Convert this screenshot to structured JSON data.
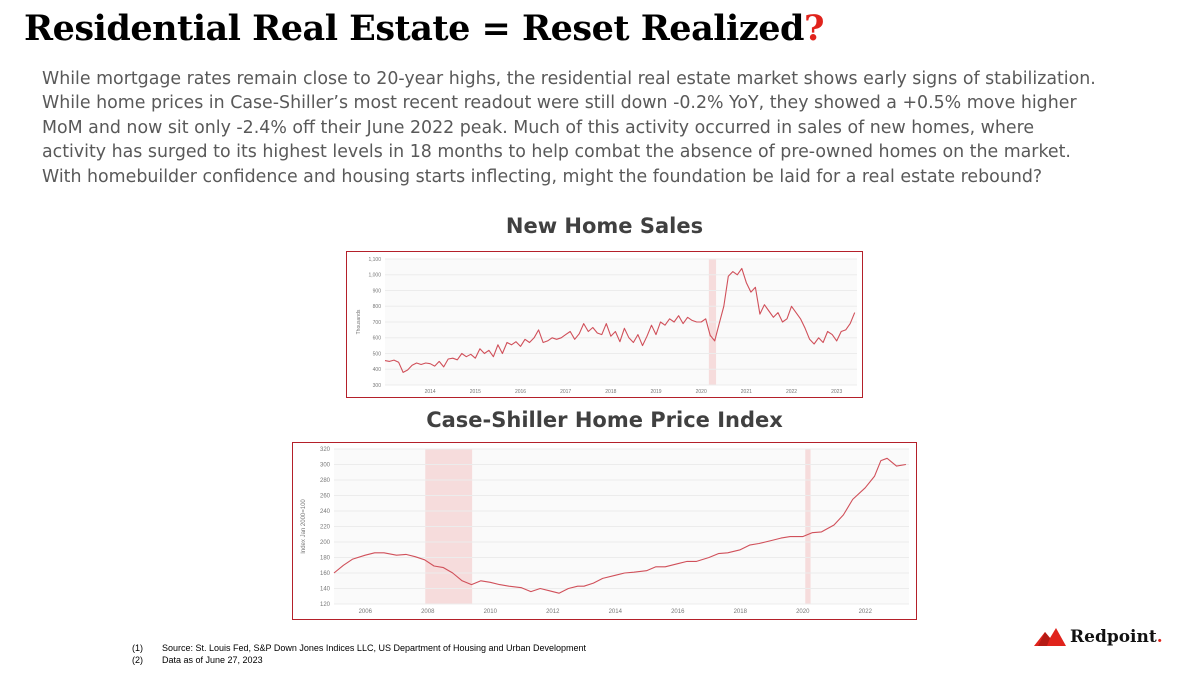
{
  "slide": {
    "title_main": "Residential Real Estate = Reset Realized",
    "title_mark": "?",
    "body_lines": [
      "While mortgage rates remain close to 20-year highs, the residential real estate market shows early signs of stabilization.",
      "While home prices in Case-Shiller’s most recent readout were still down -0.2% YoY, they showed a +0.5% move higher",
      "MoM and now sit only -2.4% off their June 2022 peak. Much of this activity occurred in sales of new homes, where",
      "activity has surged to its highest levels in 18 months to help combat the absence of pre-owned homes on the market.",
      "With homebuilder confidence and housing starts inflecting, might the foundation be laid for a real estate rebound?"
    ],
    "footnotes": [
      {
        "num": "(1)",
        "text": "Source: St. Louis Fed, S&P Down Jones Indices LLC, US Department of Housing and Urban Development"
      },
      {
        "num": "(2)",
        "text": "Data as of June 27, 2023"
      }
    ],
    "logo": {
      "name": "Redpoint",
      "dot": ".",
      "icon": "mountain-logo-icon",
      "color": "#e0231c"
    },
    "accent_color": "#e0231c",
    "line_color": "#d0505a",
    "recession_color": "#f6dcdc",
    "border_color": "#b4202a"
  },
  "chart_data": [
    {
      "type": "line",
      "title": "New Home Sales",
      "ylabel": "Thousands",
      "xlabel": "",
      "ylim": [
        300,
        1100
      ],
      "yticks": [
        "1,100",
        "1,000",
        "900",
        "800",
        "700",
        "600",
        "500",
        "400",
        "300"
      ],
      "ytick_values": [
        1100,
        1000,
        900,
        800,
        700,
        600,
        500,
        400,
        300
      ],
      "xticks": [
        "2014",
        "2015",
        "2016",
        "2017",
        "2018",
        "2019",
        "2020",
        "2021",
        "2022",
        "2023"
      ],
      "xtick_values": [
        2014,
        2015,
        2016,
        2017,
        2018,
        2019,
        2020,
        2021,
        2022,
        2023
      ],
      "xlim": [
        2013.0,
        2023.45
      ],
      "grid": true,
      "recession_shading": [
        [
          2020.17,
          2020.33
        ]
      ],
      "series": [
        {
          "x": [
            2013.0,
            2013.1,
            2013.2,
            2013.3,
            2013.4,
            2013.5,
            2013.6,
            2013.7,
            2013.8,
            2013.9,
            2014.0,
            2014.1,
            2014.2,
            2014.3,
            2014.4,
            2014.5,
            2014.6,
            2014.7,
            2014.8,
            2014.9,
            2015.0,
            2015.1,
            2015.2,
            2015.3,
            2015.4,
            2015.5,
            2015.6,
            2015.7,
            2015.8,
            2015.9,
            2016.0,
            2016.1,
            2016.2,
            2016.3,
            2016.4,
            2016.5,
            2016.6,
            2016.7,
            2016.8,
            2016.9,
            2017.0,
            2017.1,
            2017.2,
            2017.3,
            2017.4,
            2017.5,
            2017.6,
            2017.7,
            2017.8,
            2017.9,
            2018.0,
            2018.1,
            2018.2,
            2018.3,
            2018.4,
            2018.5,
            2018.6,
            2018.7,
            2018.8,
            2018.9,
            2019.0,
            2019.1,
            2019.2,
            2019.3,
            2019.4,
            2019.5,
            2019.6,
            2019.7,
            2019.8,
            2019.9,
            2020.0,
            2020.1,
            2020.2,
            2020.3,
            2020.4,
            2020.5,
            2020.6,
            2020.7,
            2020.8,
            2020.9,
            2021.0,
            2021.1,
            2021.2,
            2021.3,
            2021.4,
            2021.5,
            2021.6,
            2021.7,
            2021.8,
            2021.9,
            2022.0,
            2022.1,
            2022.2,
            2022.3,
            2022.4,
            2022.5,
            2022.6,
            2022.7,
            2022.8,
            2022.9,
            2023.0,
            2023.1,
            2023.2,
            2023.3,
            2023.4
          ],
          "y": [
            455,
            450,
            458,
            445,
            380,
            395,
            425,
            440,
            430,
            440,
            435,
            420,
            450,
            415,
            465,
            470,
            460,
            500,
            480,
            495,
            470,
            530,
            500,
            520,
            480,
            555,
            500,
            570,
            555,
            575,
            545,
            590,
            570,
            600,
            650,
            570,
            580,
            600,
            590,
            600,
            620,
            640,
            590,
            625,
            690,
            640,
            665,
            630,
            620,
            690,
            610,
            640,
            575,
            660,
            600,
            570,
            620,
            550,
            610,
            680,
            620,
            700,
            680,
            720,
            700,
            740,
            690,
            730,
            710,
            700,
            700,
            720,
            615,
            580,
            690,
            800,
            990,
            1020,
            1000,
            1040,
            950,
            890,
            920,
            750,
            810,
            770,
            730,
            760,
            700,
            720,
            800,
            760,
            720,
            660,
            590,
            560,
            600,
            570,
            640,
            620,
            580,
            640,
            650,
            690,
            760
          ]
        }
      ]
    },
    {
      "type": "line",
      "title": "Case-Shiller Home Price Index",
      "ylabel": "Index Jan 2000=100",
      "xlabel": "",
      "ylim": [
        120,
        320
      ],
      "yticks": [
        "320",
        "300",
        "280",
        "260",
        "240",
        "220",
        "200",
        "180",
        "160",
        "140",
        "120"
      ],
      "ytick_values": [
        320,
        300,
        280,
        260,
        240,
        220,
        200,
        180,
        160,
        140,
        120
      ],
      "xticks": [
        "2006",
        "2008",
        "2010",
        "2012",
        "2014",
        "2016",
        "2018",
        "2020",
        "2022"
      ],
      "xtick_values": [
        2006,
        2008,
        2010,
        2012,
        2014,
        2016,
        2018,
        2020,
        2022
      ],
      "xlim": [
        2005.0,
        2023.4
      ],
      "grid": true,
      "recession_shading": [
        [
          2007.92,
          2009.42
        ],
        [
          2020.08,
          2020.25
        ]
      ],
      "series": [
        {
          "x": [
            2005.0,
            2005.3,
            2005.6,
            2006.0,
            2006.3,
            2006.6,
            2007.0,
            2007.3,
            2007.6,
            2007.9,
            2008.2,
            2008.5,
            2008.8,
            2009.1,
            2009.4,
            2009.7,
            2010.0,
            2010.3,
            2010.6,
            2011.0,
            2011.3,
            2011.6,
            2011.9,
            2012.2,
            2012.5,
            2012.8,
            2013.0,
            2013.3,
            2013.6,
            2014.0,
            2014.3,
            2014.6,
            2015.0,
            2015.3,
            2015.6,
            2016.0,
            2016.3,
            2016.6,
            2017.0,
            2017.3,
            2017.6,
            2018.0,
            2018.3,
            2018.6,
            2019.0,
            2019.3,
            2019.6,
            2020.0,
            2020.3,
            2020.6,
            2021.0,
            2021.3,
            2021.6,
            2022.0,
            2022.3,
            2022.5,
            2022.7,
            2023.0,
            2023.3
          ],
          "y": [
            160,
            170,
            178,
            183,
            186,
            186,
            183,
            184,
            181,
            177,
            169,
            167,
            160,
            150,
            145,
            150,
            148,
            145,
            143,
            141,
            136,
            140,
            137,
            134,
            140,
            143,
            143,
            147,
            153,
            157,
            160,
            161,
            163,
            168,
            168,
            172,
            175,
            175,
            180,
            185,
            186,
            190,
            196,
            198,
            202,
            205,
            207,
            207,
            212,
            213,
            222,
            235,
            255,
            270,
            285,
            305,
            308,
            298,
            300
          ]
        }
      ]
    }
  ]
}
